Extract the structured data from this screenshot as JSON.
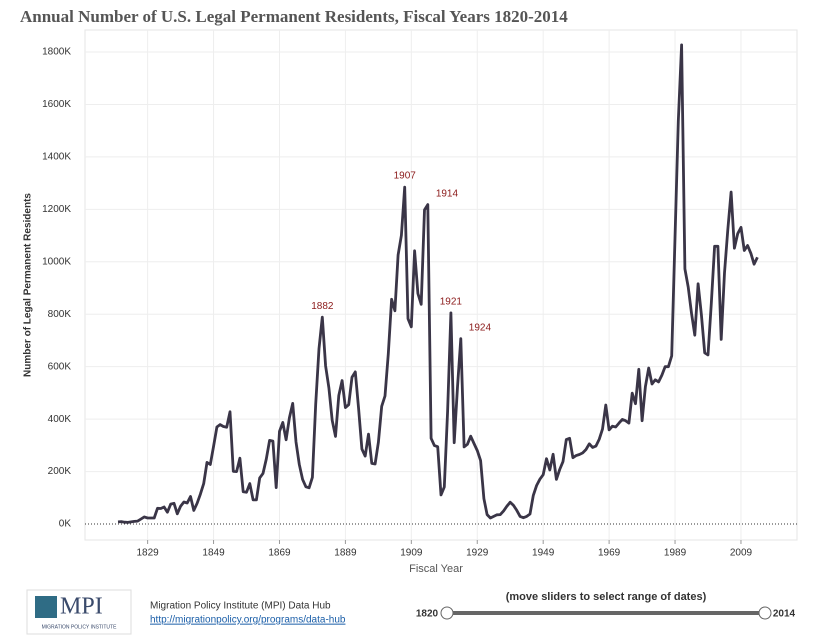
{
  "chart_data": {
    "type": "line",
    "title": "Annual Number of U.S. Legal Permanent Residents, Fiscal Years 1820-2014",
    "x_label": "Fiscal Year",
    "y_label": "Number of Legal Permanent Residents",
    "x": [
      1820,
      1821,
      1822,
      1823,
      1824,
      1825,
      1826,
      1827,
      1828,
      1829,
      1830,
      1831,
      1832,
      1833,
      1834,
      1835,
      1836,
      1837,
      1838,
      1839,
      1840,
      1841,
      1842,
      1843,
      1844,
      1845,
      1846,
      1847,
      1848,
      1849,
      1850,
      1851,
      1852,
      1853,
      1854,
      1855,
      1856,
      1857,
      1858,
      1859,
      1860,
      1861,
      1862,
      1863,
      1864,
      1865,
      1866,
      1867,
      1868,
      1869,
      1870,
      1871,
      1872,
      1873,
      1874,
      1875,
      1876,
      1877,
      1878,
      1879,
      1880,
      1881,
      1882,
      1883,
      1884,
      1885,
      1886,
      1887,
      1888,
      1889,
      1890,
      1891,
      1892,
      1893,
      1894,
      1895,
      1896,
      1897,
      1898,
      1899,
      1900,
      1901,
      1902,
      1903,
      1904,
      1905,
      1906,
      1907,
      1908,
      1909,
      1910,
      1911,
      1912,
      1913,
      1914,
      1915,
      1916,
      1917,
      1918,
      1919,
      1920,
      1921,
      1922,
      1923,
      1924,
      1925,
      1926,
      1927,
      1928,
      1929,
      1930,
      1931,
      1932,
      1933,
      1934,
      1935,
      1936,
      1937,
      1938,
      1939,
      1940,
      1941,
      1942,
      1943,
      1944,
      1945,
      1946,
      1947,
      1948,
      1949,
      1950,
      1951,
      1952,
      1953,
      1954,
      1955,
      1956,
      1957,
      1958,
      1959,
      1960,
      1961,
      1962,
      1963,
      1964,
      1965,
      1966,
      1967,
      1968,
      1969,
      1970,
      1971,
      1972,
      1973,
      1974,
      1975,
      1976,
      1977,
      1978,
      1979,
      1980,
      1981,
      1982,
      1983,
      1984,
      1985,
      1986,
      1987,
      1988,
      1989,
      1990,
      1991,
      1992,
      1993,
      1994,
      1995,
      1996,
      1997,
      1998,
      1999,
      2000,
      2001,
      2002,
      2003,
      2004,
      2005,
      2006,
      2007,
      2008,
      2009,
      2010,
      2011,
      2012,
      2013,
      2014
    ],
    "series": [
      {
        "color": "#3a3547",
        "values": [
          8000,
          9000,
          7000,
          6000,
          8000,
          10000,
          11000,
          19000,
          27000,
          23000,
          23000,
          23000,
          60000,
          59000,
          65000,
          45000,
          76000,
          79000,
          39000,
          68000,
          84000,
          80000,
          105000,
          52000,
          79000,
          114000,
          154000,
          235000,
          227000,
          297000,
          370000,
          379000,
          372000,
          369000,
          428000,
          201000,
          200000,
          251000,
          123000,
          121000,
          154000,
          92000,
          92000,
          176000,
          193000,
          248000,
          319000,
          316000,
          139000,
          353000,
          387000,
          321000,
          405000,
          460000,
          313000,
          227000,
          170000,
          142000,
          138000,
          178000,
          457000,
          669000,
          789000,
          603000,
          519000,
          395000,
          334000,
          490000,
          547000,
          444000,
          455000,
          560000,
          580000,
          440000,
          286000,
          259000,
          343000,
          231000,
          229000,
          312000,
          449000,
          488000,
          649000,
          857000,
          813000,
          1026000,
          1101000,
          1285000,
          783000,
          752000,
          1042000,
          879000,
          838000,
          1198000,
          1218000,
          327000,
          299000,
          295000,
          111000,
          141000,
          430000,
          805000,
          310000,
          523000,
          707000,
          294000,
          304000,
          335000,
          307000,
          280000,
          242000,
          97000,
          36000,
          23000,
          29000,
          35000,
          36000,
          50000,
          68000,
          83000,
          71000,
          52000,
          29000,
          24000,
          29000,
          38000,
          109000,
          147000,
          171000,
          188000,
          249000,
          206000,
          266000,
          170000,
          208000,
          238000,
          322000,
          327000,
          253000,
          261000,
          265000,
          271000,
          284000,
          306000,
          292000,
          297000,
          323000,
          362000,
          454000,
          359000,
          373000,
          370000,
          385000,
          399000,
          394000,
          385000,
          499000,
          459000,
          590000,
          394000,
          524000,
          595000,
          534000,
          550000,
          542000,
          568000,
          600000,
          600000,
          641000,
          1090000,
          1536000,
          1827000,
          973000,
          904000,
          804000,
          720000,
          916000,
          798000,
          653000,
          645000,
          841000,
          1059000,
          1059000,
          704000,
          958000,
          1122000,
          1266000,
          1052000,
          1107000,
          1131000,
          1043000,
          1062000,
          1032000,
          991000,
          1017000
        ]
      }
    ],
    "annotations": [
      1882,
      1907,
      1914,
      1921,
      1924
    ],
    "annotation_color": "#8b1a1a",
    "xlim": [
      1810,
      2026
    ],
    "xticks": [
      1829,
      1849,
      1869,
      1889,
      1909,
      1929,
      1949,
      1969,
      1989,
      2009
    ],
    "ylim": [
      -61000,
      1884000
    ],
    "yticks": [
      {
        "value": 0,
        "label": "0K"
      },
      {
        "value": 200000,
        "label": "200K"
      },
      {
        "value": 400000,
        "label": "400K"
      },
      {
        "value": 600000,
        "label": "600K"
      },
      {
        "value": 800000,
        "label": "800K"
      },
      {
        "value": 1000000,
        "label": "1000K"
      },
      {
        "value": 1200000,
        "label": "1200K"
      },
      {
        "value": 1400000,
        "label": "1400K"
      },
      {
        "value": 1600000,
        "label": "1600K"
      },
      {
        "value": 1800000,
        "label": "1800K"
      }
    ],
    "grid": true
  },
  "footer": {
    "logo": "MPI",
    "logo_sub": "MIGRATION POLICY INSTITUTE",
    "source": "Migration Policy Institute (MPI) Data Hub",
    "link": "http://migrationpolicy.org/programs/data-hub"
  },
  "slider": {
    "caption": "(move sliders to select range of dates)",
    "from": 1820,
    "to": 2014
  }
}
